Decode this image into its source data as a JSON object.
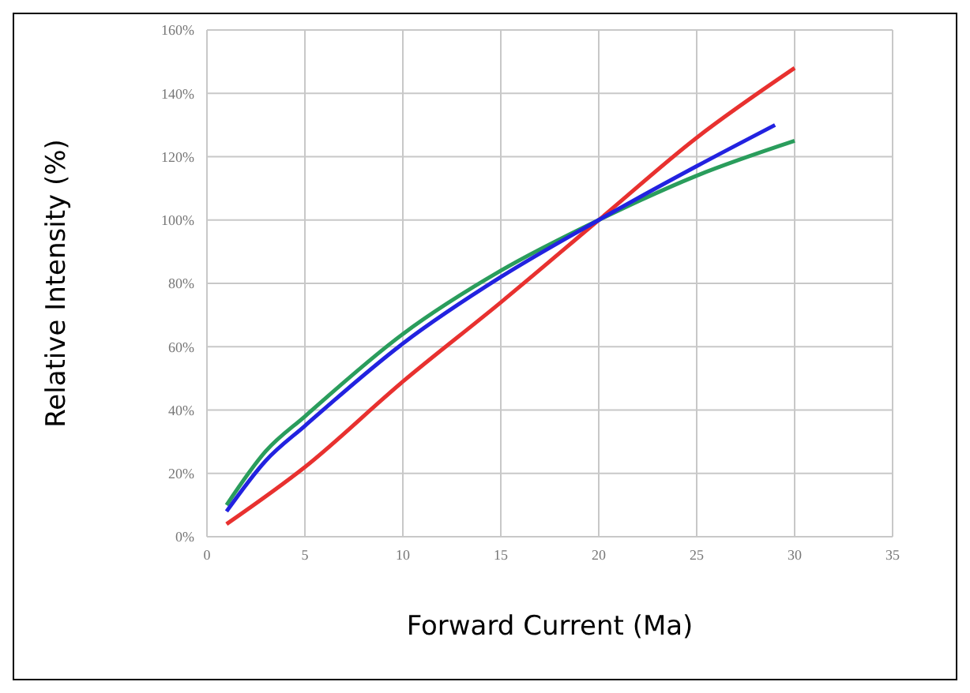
{
  "chart_data": {
    "type": "line",
    "xlabel": "Forward Current (Ma)",
    "ylabel": "Relative Intensity (%)",
    "xlim": [
      0,
      35
    ],
    "xticks": [
      0,
      5,
      10,
      15,
      20,
      25,
      30,
      35
    ],
    "ylim": [
      0,
      160
    ],
    "yticks": [
      {
        "value": 0,
        "label": "0%"
      },
      {
        "value": 20,
        "label": "20%"
      },
      {
        "value": 40,
        "label": "40%"
      },
      {
        "value": 60,
        "label": "60%"
      },
      {
        "value": 80,
        "label": "80%"
      },
      {
        "value": 100,
        "label": "100%"
      },
      {
        "value": 120,
        "label": "120%"
      },
      {
        "value": 140,
        "label": "140%"
      },
      {
        "value": 160,
        "label": "160%"
      }
    ],
    "grid": true,
    "marker": "none",
    "line_style": "solid",
    "series": [
      {
        "color": "#e8312f",
        "x": [
          1,
          5,
          10,
          15,
          20,
          25,
          30
        ],
        "values": [
          4,
          22,
          49,
          74,
          100,
          126,
          148
        ]
      },
      {
        "color": "#2a9d5c",
        "x": [
          1,
          3,
          5,
          10,
          15,
          20,
          25,
          30
        ],
        "values": [
          10,
          27,
          38,
          64,
          84,
          100,
          114,
          125
        ]
      },
      {
        "color": "#2222e0",
        "x": [
          1,
          3,
          5,
          10,
          15,
          20,
          25,
          29
        ],
        "values": [
          8,
          24,
          35,
          61,
          82,
          100,
          117,
          130
        ]
      }
    ]
  }
}
